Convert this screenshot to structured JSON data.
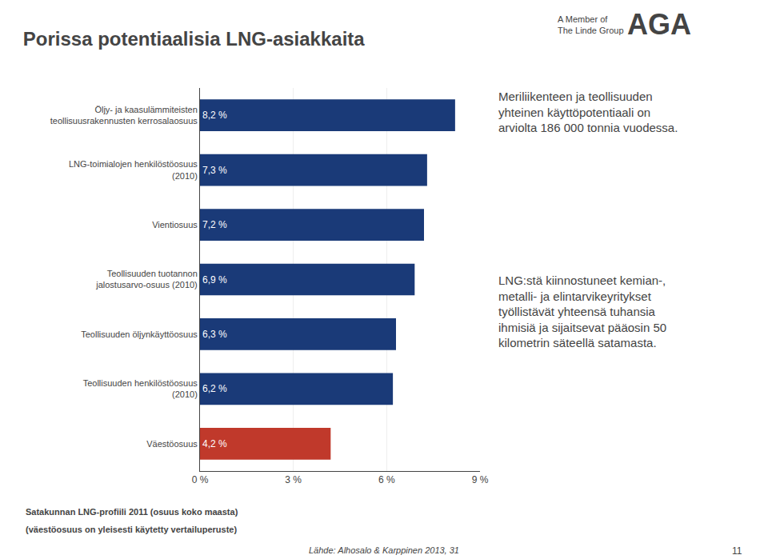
{
  "chart_data": {
    "type": "bar",
    "orientation": "horizontal",
    "title": "Porissa potentiaalisia LNG-asiakkaita",
    "subtitle": "Satakunnan LNG-profiili 2011 (osuus koko maasta)",
    "annotations": [
      "(väestöosuus on yleisesti käytetty vertailuperuste)",
      "Meriliikenteen ja teollisuuden\nyhteinen käyttöpotentiaali on\narviolta 186 000 tonnia vuodessa.",
      "LNG:stä kiinnostuneet kemian-,\nmetalli- ja elintarvikeyritykset\ntyöllistävät yhteensä tuhansia\nihmisiä ja sijaitsevat pääosin 50\nkilometrin säteellä satamasta.",
      "Lähde: Alhosalo & Karppinen 2013, 31",
      "11",
      "A Member of\nThe Linde Group",
      "AGA"
    ],
    "categories": [
      "Öljy- ja kaasulämmiteisten\nteollisuusrakennusten kerrosalaosuus",
      "LNG-toimialojen henkilöstöosuus\n(2010)",
      "Vientiosuus",
      "Teollisuuden tuotannon\njalostusarvo-osuus (2010)",
      "Teollisuuden öljynkäyttöosuus",
      "Teollisuuden henkilöstöosuus\n(2010)",
      "Väestöosuus"
    ],
    "values": [
      8.2,
      7.3,
      7.2,
      6.9,
      6.3,
      6.2,
      4.2
    ],
    "value_labels": [
      "8,2 %",
      "7,3 %",
      "7,2 %",
      "6,9 %",
      "6,3 %",
      "6,2 %",
      "4,2 %"
    ],
    "colors": [
      "#1a3a78",
      "#1a3a78",
      "#1a3a78",
      "#1a3a78",
      "#1a3a78",
      "#1a3a78",
      "#c0392b"
    ],
    "xlim": [
      0,
      9
    ],
    "xticks": [
      {
        "value": 0,
        "label": "0 %"
      },
      {
        "value": 3,
        "label": "3 %"
      },
      {
        "value": 6,
        "label": "6 %"
      },
      {
        "value": 9,
        "label": "9 %"
      }
    ],
    "grid": true,
    "data_labels": true
  }
}
